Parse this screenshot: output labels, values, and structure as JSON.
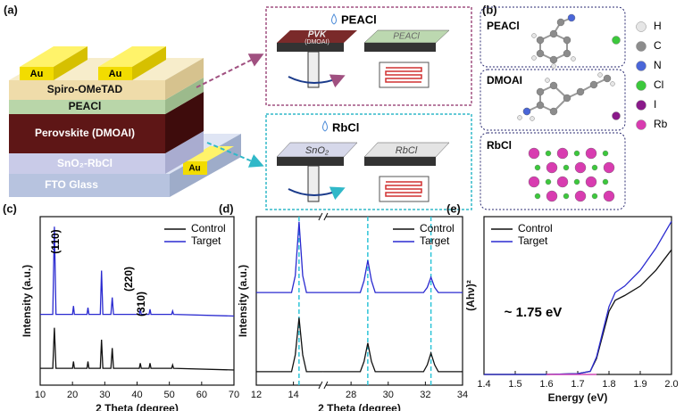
{
  "panel_a": {
    "label": "(a)",
    "stack": {
      "au": [
        "Au",
        "Au",
        "Au"
      ],
      "spiro": "Spiro-OMeTAD",
      "peacl": "PEACl",
      "perovskite": "Perovskite (DMOAI)",
      "sno2": "SnO₂-RbCl",
      "fto": "FTO Glass"
    },
    "top_process": {
      "reagent": "PEACl",
      "before_1": "PVK",
      "before_2": "(DMOAI)",
      "after": "PEACl"
    },
    "bottom_process": {
      "reagent": "RbCl",
      "before": "SnO₂",
      "after": "RbCl"
    }
  },
  "panel_b": {
    "label": "(b)",
    "molecules": [
      "PEACl",
      "DMOAI",
      "RbCl"
    ],
    "elements": [
      {
        "symbol": "H",
        "color": "#e6e6e6"
      },
      {
        "symbol": "C",
        "color": "#8c8c8c"
      },
      {
        "symbol": "N",
        "color": "#4a66d8"
      },
      {
        "symbol": "Cl",
        "color": "#3cc83c"
      },
      {
        "symbol": "I",
        "color": "#8a1a8a"
      },
      {
        "symbol": "Rb",
        "color": "#d83cb0"
      }
    ]
  },
  "chart_data": [
    {
      "type": "line",
      "panel_label": "(c)",
      "xlabel": "2 Theta (degree)",
      "ylabel": "Intensity (a.u.)",
      "xlim": [
        10,
        70
      ],
      "xticks": [
        10,
        20,
        30,
        40,
        50,
        60,
        70
      ],
      "ylim": [
        0,
        100
      ],
      "legend": "upper right",
      "annotations": [
        "(110)",
        "(220)",
        "(310)"
      ],
      "x": [
        10,
        13.9,
        14.4,
        14.9,
        20,
        20.3,
        20.6,
        24.5,
        24.8,
        25.1,
        28.6,
        29,
        29.4,
        31.9,
        32.3,
        32.7,
        40.7,
        41,
        41.3,
        43.7,
        44,
        44.3,
        50.7,
        51,
        51.3,
        70
      ],
      "series": [
        {
          "name": "Control",
          "color": "#111111",
          "values": [
            10,
            10,
            34,
            10,
            10,
            14,
            10,
            10,
            14,
            10,
            10,
            27,
            10,
            10,
            22,
            10,
            10,
            13,
            10,
            10,
            13,
            10,
            10,
            12,
            10,
            9
          ]
        },
        {
          "name": "Target",
          "color": "#2a2ad0",
          "values": [
            42,
            42,
            94,
            42,
            42,
            47,
            42,
            42,
            46,
            42,
            42,
            68,
            42,
            42,
            52,
            42,
            42,
            45,
            42,
            42,
            45,
            42,
            42,
            44,
            42,
            41
          ]
        }
      ]
    },
    {
      "type": "line",
      "panel_label": "(d)",
      "xlabel": "2 Theta (degree)",
      "ylabel": "Intensity (a.u.)",
      "xlim": [
        12,
        34
      ],
      "xbreak": [
        15.6,
        26.5
      ],
      "xticks": [
        12,
        14,
        28,
        30,
        32,
        34
      ],
      "ylim": [
        0,
        100
      ],
      "legend": "upper right",
      "ref_lines": [
        14.3,
        28.9,
        32.3
      ],
      "ref_color": "#2ec4d8",
      "x": [
        12,
        13.9,
        14.1,
        14.3,
        14.5,
        14.7,
        15.6,
        21,
        26.5,
        28.5,
        28.7,
        28.9,
        29.1,
        29.3,
        31.9,
        32.1,
        32.3,
        32.5,
        32.7,
        34
      ],
      "series": [
        {
          "name": "Control",
          "color": "#111111",
          "values": [
            8,
            8,
            18,
            40,
            18,
            8,
            8,
            null,
            8,
            8,
            14,
            25,
            14,
            8,
            8,
            12,
            19,
            12,
            8,
            8
          ]
        },
        {
          "name": "Target",
          "color": "#2a2ad0",
          "values": [
            55,
            55,
            65,
            97,
            65,
            55,
            55,
            null,
            55,
            55,
            62,
            74,
            62,
            55,
            55,
            58,
            64,
            58,
            55,
            55
          ]
        }
      ]
    },
    {
      "type": "line",
      "panel_label": "(e)",
      "xlabel": "Energy (eV)",
      "ylabel": "(Ahν)²",
      "xlim": [
        1.4,
        2
      ],
      "xticks": [
        1.4,
        1.5,
        1.6,
        1.7,
        1.8,
        1.9,
        {
          "value": 2,
          "label": "2.0"
        }
      ],
      "ylim": [
        0,
        100
      ],
      "legend": "upper left",
      "annotations": [
        "~ 1.75 eV"
      ],
      "fit": {
        "color": "#e040c0",
        "x": [
          1.6,
          1.76,
          1.735,
          1.825
        ],
        "values": [
          0,
          0,
          null,
          52
        ]
      },
      "x": [
        1.4,
        1.5,
        1.6,
        1.7,
        1.74,
        1.76,
        1.78,
        1.8,
        1.82,
        1.85,
        1.9,
        1.95,
        2
      ],
      "series": [
        {
          "name": "Control",
          "color": "#111111",
          "values": [
            0,
            0,
            0,
            0.5,
            2,
            10,
            25,
            40,
            47,
            50,
            56,
            66,
            79
          ]
        },
        {
          "name": "Target",
          "color": "#2a2ad0",
          "values": [
            0,
            0,
            0,
            0.5,
            2,
            11,
            27,
            43,
            52,
            56,
            66,
            80,
            97
          ]
        }
      ]
    }
  ]
}
